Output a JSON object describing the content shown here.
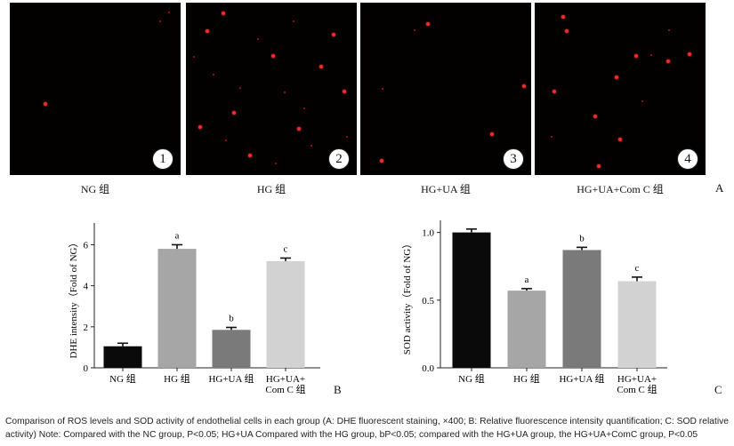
{
  "panels": [
    {
      "label": "NG 组",
      "badge": "1"
    },
    {
      "label": "HG 组",
      "badge": "2"
    },
    {
      "label": "HG+UA 组",
      "badge": "3"
    },
    {
      "label": "HG+UA+Com C 组",
      "badge": "4"
    }
  ],
  "figure_letters": {
    "a": "A",
    "b": "B",
    "c": "C"
  },
  "chart_data": [
    {
      "type": "bar",
      "ylabel": "DHE intensity（Fold of NG）",
      "categories": [
        "NG 组",
        "HG 组",
        "HG+UA 组",
        "HG+UA+\nCom C 组"
      ],
      "values": [
        1.05,
        5.8,
        1.85,
        5.2
      ],
      "errors": [
        0.15,
        0.2,
        0.12,
        0.15
      ],
      "annotations": [
        "",
        "a",
        "b",
        "c"
      ],
      "colors": [
        "#0a0a0a",
        "#a6a6a6",
        "#7a7a7a",
        "#d2d2d2"
      ],
      "ylim": [
        0,
        6.8
      ],
      "yticks": [
        0,
        2,
        4,
        6
      ],
      "tick_labels": [
        "0",
        "2",
        "4",
        "6"
      ]
    },
    {
      "type": "bar",
      "ylabel": "SOD activity（Fold of NG）",
      "categories": [
        "NG 组",
        "HG 组",
        "HG+UA 组",
        "HG+UA+\nCom C 组"
      ],
      "values": [
        1.0,
        0.57,
        0.87,
        0.64
      ],
      "errors": [
        0.025,
        0.015,
        0.02,
        0.03
      ],
      "annotations": [
        "",
        "a",
        "b",
        "c"
      ],
      "colors": [
        "#0a0a0a",
        "#a6a6a6",
        "#7a7a7a",
        "#d2d2d2"
      ],
      "ylim": [
        0,
        1.05
      ],
      "yticks": [
        0,
        0.5,
        1.0
      ],
      "tick_labels": [
        "0.0",
        "0.5",
        "1.0"
      ]
    }
  ],
  "caption": {
    "line1": "Comparison of ROS levels and SOD activity of endothelial cells in each group (A: DHE fluorescent staining, ×400; B: Relative fluorescence intensity quantification; C: SOD relative",
    "line2": "activity) Note: Compared with the NC group, P<0.05; HG+UA Compared with the HG group, bP<0.05; compared with the HG+UA group, the HG+UA+ComC group, P<0.05"
  }
}
